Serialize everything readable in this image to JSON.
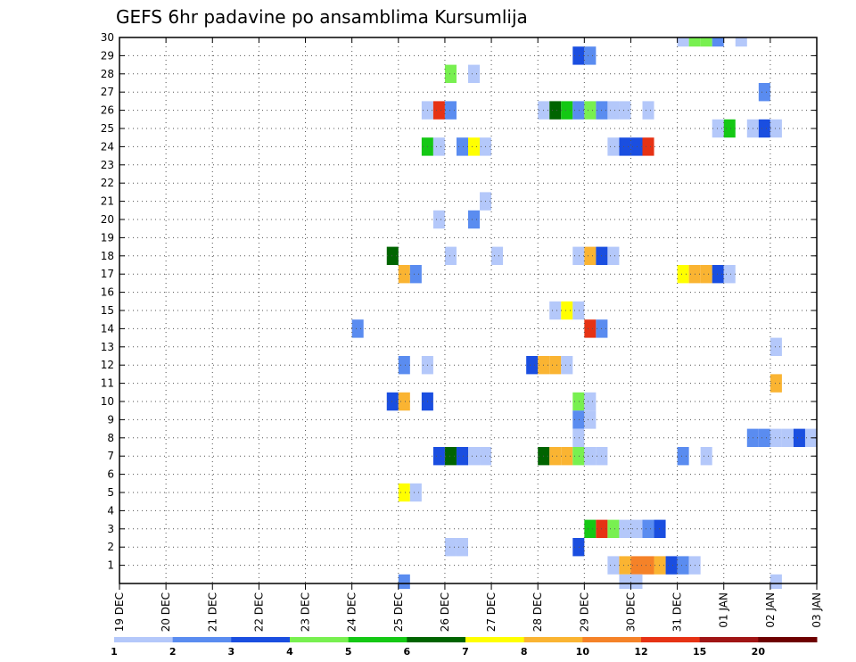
{
  "chart_data": {
    "type": "heatmap",
    "title": "GEFS 6hr padavine po ansamblima Kursumlija",
    "xlabel": "",
    "ylabel": "",
    "x_tick_labels": [
      "19 DEC",
      "20 DEC",
      "21 DEC",
      "22 DEC",
      "23 DEC",
      "24 DEC",
      "25 DEC",
      "26 DEC",
      "27 DEC",
      "28 DEC",
      "29 DEC",
      "30 DEC",
      "31 DEC",
      "01 JAN",
      "02 JAN",
      "03 JAN"
    ],
    "y_range": [
      0,
      30
    ],
    "y_ticks": [
      1,
      2,
      3,
      4,
      5,
      6,
      7,
      8,
      9,
      10,
      11,
      12,
      13,
      14,
      15,
      16,
      17,
      18,
      19,
      20,
      21,
      22,
      23,
      24,
      25,
      26,
      27,
      28,
      29,
      30
    ],
    "grid": true,
    "time_step_hours": 6,
    "colorbar": {
      "labels": [
        "1",
        "2",
        "3",
        "4",
        "5",
        "6",
        "7",
        "8",
        "10",
        "12",
        "15",
        "20"
      ],
      "colors": [
        "#b4c8fa",
        "#5a8cf0",
        "#1a4ee0",
        "#78f050",
        "#14c814",
        "#006400",
        "#ffff00",
        "#fab432",
        "#f58228",
        "#e63214",
        "#a01414",
        "#6e0000"
      ]
    },
    "cells": [
      {
        "member": 30,
        "time": "31 DEC 00",
        "level": 0
      },
      {
        "member": 30,
        "time": "31 DEC 06",
        "level": 3
      },
      {
        "member": 30,
        "time": "31 DEC 12",
        "level": 3
      },
      {
        "member": 30,
        "time": "31 DEC 18",
        "level": 1
      },
      {
        "member": 30,
        "time": "01 JAN 06",
        "level": 0
      },
      {
        "member": 29,
        "time": "28 DEC 18",
        "level": 2
      },
      {
        "member": 29,
        "time": "29 DEC 00",
        "level": 1
      },
      {
        "member": 28,
        "time": "26 DEC 00",
        "level": 3
      },
      {
        "member": 28,
        "time": "26 DEC 12",
        "level": 0
      },
      {
        "member": 27,
        "time": "01 JAN 18",
        "level": 1
      },
      {
        "member": 26,
        "time": "25 DEC 12",
        "level": 0
      },
      {
        "member": 26,
        "time": "25 DEC 18",
        "level": 9
      },
      {
        "member": 26,
        "time": "26 DEC 00",
        "level": 1
      },
      {
        "member": 26,
        "time": "28 DEC 00",
        "level": 0
      },
      {
        "member": 26,
        "time": "28 DEC 06",
        "level": 5
      },
      {
        "member": 26,
        "time": "28 DEC 12",
        "level": 4
      },
      {
        "member": 26,
        "time": "28 DEC 18",
        "level": 1
      },
      {
        "member": 26,
        "time": "29 DEC 00",
        "level": 3
      },
      {
        "member": 26,
        "time": "29 DEC 06",
        "level": 1
      },
      {
        "member": 26,
        "time": "29 DEC 12",
        "level": 0
      },
      {
        "member": 26,
        "time": "29 DEC 18",
        "level": 0
      },
      {
        "member": 26,
        "time": "30 DEC 06",
        "level": 0
      },
      {
        "member": 26,
        "time": "03 JAN 00",
        "level": 0
      },
      {
        "member": 25,
        "time": "31 DEC 18",
        "level": 0
      },
      {
        "member": 25,
        "time": "01 JAN 00",
        "level": 4
      },
      {
        "member": 25,
        "time": "01 JAN 12",
        "level": 0
      },
      {
        "member": 25,
        "time": "01 JAN 18",
        "level": 2
      },
      {
        "member": 25,
        "time": "02 JAN 00",
        "level": 0
      },
      {
        "member": 24,
        "time": "25 DEC 12",
        "level": 4
      },
      {
        "member": 24,
        "time": "25 DEC 18",
        "level": 0
      },
      {
        "member": 24,
        "time": "26 DEC 06",
        "level": 1
      },
      {
        "member": 24,
        "time": "26 DEC 12",
        "level": 6
      },
      {
        "member": 24,
        "time": "26 DEC 18",
        "level": 0
      },
      {
        "member": 24,
        "time": "29 DEC 12",
        "level": 0
      },
      {
        "member": 24,
        "time": "29 DEC 18",
        "level": 2
      },
      {
        "member": 24,
        "time": "30 DEC 00",
        "level": 2
      },
      {
        "member": 24,
        "time": "30 DEC 06",
        "level": 9
      },
      {
        "member": 21,
        "time": "26 DEC 18",
        "level": 0
      },
      {
        "member": 20,
        "time": "25 DEC 18",
        "level": 0
      },
      {
        "member": 20,
        "time": "26 DEC 12",
        "level": 1
      },
      {
        "member": 18,
        "time": "24 DEC 18",
        "level": 5
      },
      {
        "member": 18,
        "time": "26 DEC 00",
        "level": 0
      },
      {
        "member": 18,
        "time": "27 DEC 00",
        "level": 0
      },
      {
        "member": 18,
        "time": "28 DEC 18",
        "level": 0
      },
      {
        "member": 18,
        "time": "29 DEC 00",
        "level": 7
      },
      {
        "member": 18,
        "time": "29 DEC 06",
        "level": 2
      },
      {
        "member": 18,
        "time": "29 DEC 12",
        "level": 0
      },
      {
        "member": 17,
        "time": "25 DEC 00",
        "level": 7
      },
      {
        "member": 17,
        "time": "25 DEC 06",
        "level": 1
      },
      {
        "member": 17,
        "time": "31 DEC 00",
        "level": 6
      },
      {
        "member": 17,
        "time": "31 DEC 06",
        "level": 7
      },
      {
        "member": 17,
        "time": "31 DEC 12",
        "level": 7
      },
      {
        "member": 17,
        "time": "31 DEC 18",
        "level": 2
      },
      {
        "member": 17,
        "time": "01 JAN 00",
        "level": 0
      },
      {
        "member": 15,
        "time": "28 DEC 06",
        "level": 0
      },
      {
        "member": 15,
        "time": "28 DEC 12",
        "level": 6
      },
      {
        "member": 15,
        "time": "28 DEC 18",
        "level": 0
      },
      {
        "member": 14,
        "time": "24 DEC 00",
        "level": 1
      },
      {
        "member": 14,
        "time": "29 DEC 00",
        "level": 9
      },
      {
        "member": 14,
        "time": "29 DEC 06",
        "level": 1
      },
      {
        "member": 13,
        "time": "02 JAN 00",
        "level": 0
      },
      {
        "member": 12,
        "time": "25 DEC 00",
        "level": 1
      },
      {
        "member": 12,
        "time": "25 DEC 12",
        "level": 0
      },
      {
        "member": 12,
        "time": "27 DEC 18",
        "level": 2
      },
      {
        "member": 12,
        "time": "28 DEC 00",
        "level": 7
      },
      {
        "member": 12,
        "time": "28 DEC 06",
        "level": 7
      },
      {
        "member": 12,
        "time": "28 DEC 12",
        "level": 0
      },
      {
        "member": 11,
        "time": "02 JAN 00",
        "level": 7
      },
      {
        "member": 10,
        "time": "24 DEC 18",
        "level": 2
      },
      {
        "member": 10,
        "time": "25 DEC 00",
        "level": 7
      },
      {
        "member": 10,
        "time": "25 DEC 12",
        "level": 2
      },
      {
        "member": 10,
        "time": "28 DEC 18",
        "level": 3
      },
      {
        "member": 10,
        "time": "29 DEC 00",
        "level": 0
      },
      {
        "member": 9,
        "time": "28 DEC 18",
        "level": 1
      },
      {
        "member": 9,
        "time": "29 DEC 00",
        "level": 0
      },
      {
        "member": 8,
        "time": "28 DEC 18",
        "level": 0
      },
      {
        "member": 8,
        "time": "01 JAN 12",
        "level": 1
      },
      {
        "member": 8,
        "time": "01 JAN 18",
        "level": 1
      },
      {
        "member": 8,
        "time": "02 JAN 00",
        "level": 0
      },
      {
        "member": 8,
        "time": "02 JAN 06",
        "level": 0
      },
      {
        "member": 8,
        "time": "02 JAN 12",
        "level": 2
      },
      {
        "member": 8,
        "time": "02 JAN 18",
        "level": 0
      },
      {
        "member": 7,
        "time": "25 DEC 18",
        "level": 2
      },
      {
        "member": 7,
        "time": "26 DEC 00",
        "level": 5
      },
      {
        "member": 7,
        "time": "26 DEC 06",
        "level": 2
      },
      {
        "member": 7,
        "time": "26 DEC 12",
        "level": 0
      },
      {
        "member": 7,
        "time": "26 DEC 18",
        "level": 0
      },
      {
        "member": 7,
        "time": "28 DEC 00",
        "level": 5
      },
      {
        "member": 7,
        "time": "28 DEC 06",
        "level": 7
      },
      {
        "member": 7,
        "time": "28 DEC 12",
        "level": 7
      },
      {
        "member": 7,
        "time": "28 DEC 18",
        "level": 3
      },
      {
        "member": 7,
        "time": "29 DEC 00",
        "level": 0
      },
      {
        "member": 7,
        "time": "29 DEC 06",
        "level": 0
      },
      {
        "member": 7,
        "time": "31 DEC 00",
        "level": 1
      },
      {
        "member": 7,
        "time": "31 DEC 12",
        "level": 0
      },
      {
        "member": 5,
        "time": "25 DEC 00",
        "level": 6
      },
      {
        "member": 5,
        "time": "25 DEC 06",
        "level": 0
      },
      {
        "member": 3,
        "time": "29 DEC 00",
        "level": 4
      },
      {
        "member": 3,
        "time": "29 DEC 06",
        "level": 9
      },
      {
        "member": 3,
        "time": "29 DEC 12",
        "level": 3
      },
      {
        "member": 3,
        "time": "29 DEC 18",
        "level": 0
      },
      {
        "member": 3,
        "time": "30 DEC 00",
        "level": 0
      },
      {
        "member": 3,
        "time": "30 DEC 06",
        "level": 1
      },
      {
        "member": 3,
        "time": "30 DEC 12",
        "level": 2
      },
      {
        "member": 2,
        "time": "26 DEC 00",
        "level": 0
      },
      {
        "member": 2,
        "time": "26 DEC 06",
        "level": 0
      },
      {
        "member": 2,
        "time": "28 DEC 18",
        "level": 2
      },
      {
        "member": 1,
        "time": "29 DEC 12",
        "level": 0
      },
      {
        "member": 1,
        "time": "29 DEC 18",
        "level": 7
      },
      {
        "member": 1,
        "time": "30 DEC 00",
        "level": 8
      },
      {
        "member": 1,
        "time": "30 DEC 06",
        "level": 8
      },
      {
        "member": 1,
        "time": "30 DEC 12",
        "level": 7
      },
      {
        "member": 1,
        "time": "30 DEC 18",
        "level": 2
      },
      {
        "member": 1,
        "time": "31 DEC 00",
        "level": 1
      },
      {
        "member": 1,
        "time": "31 DEC 06",
        "level": 0
      },
      {
        "member": 0,
        "time": "25 DEC 00",
        "level": 1
      },
      {
        "member": 0,
        "time": "29 DEC 18",
        "level": 0
      },
      {
        "member": 0,
        "time": "30 DEC 00",
        "level": 0
      },
      {
        "member": 0,
        "time": "02 JAN 00",
        "level": 0
      }
    ]
  }
}
